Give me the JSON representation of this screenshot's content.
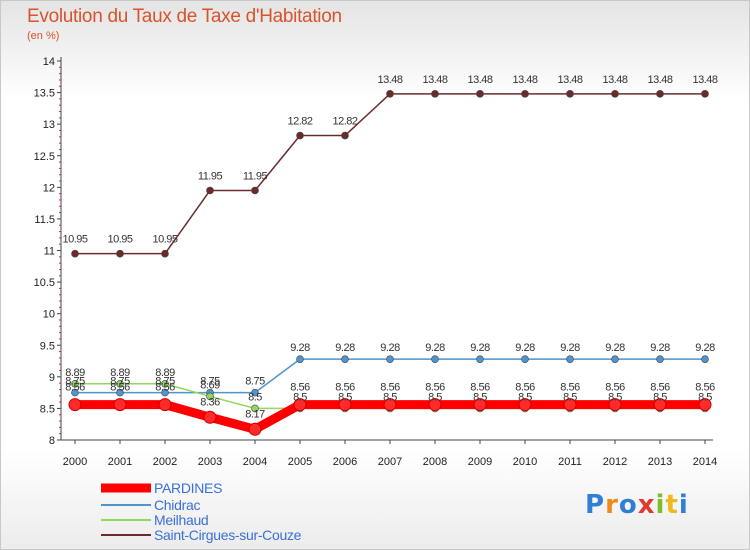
{
  "chart_data": {
    "type": "line",
    "title": "Evolution du Taux de Taxe d'Habitation",
    "subtitle": "(en %)",
    "x": [
      "2000",
      "2001",
      "2002",
      "2003",
      "2004",
      "2005",
      "2006",
      "2007",
      "2008",
      "2009",
      "2010",
      "2011",
      "2012",
      "2013",
      "2014"
    ],
    "ylim": [
      8,
      14
    ],
    "yticks": [
      "8",
      "8.5",
      "9",
      "9.5",
      "10",
      "10.5",
      "11",
      "11.5",
      "12",
      "12.5",
      "13",
      "13.5",
      "14"
    ],
    "grid": false,
    "legend_position": "bottom-left",
    "series": [
      {
        "name": "PARDINES",
        "color": "#ff0000",
        "values": [
          8.56,
          8.56,
          8.56,
          8.36,
          8.17,
          8.56,
          8.56,
          8.56,
          8.56,
          8.56,
          8.56,
          8.56,
          8.56,
          8.56,
          8.56
        ],
        "labels": [
          "8.56",
          "8.56",
          "8.56",
          "8.36",
          "8.17",
          "8.56",
          "8.56",
          "8.56",
          "8.56",
          "8.56",
          "8.56",
          "8.56",
          "8.56",
          "8.56",
          "8.56"
        ]
      },
      {
        "name": "Chidrac",
        "color": "#4f94cd",
        "values": [
          8.75,
          8.75,
          8.75,
          8.75,
          8.75,
          9.28,
          9.28,
          9.28,
          9.28,
          9.28,
          9.28,
          9.28,
          9.28,
          9.28,
          9.28
        ],
        "labels": [
          "8.75",
          "8.75",
          "8.75",
          "8.75",
          "8.75",
          "9.28",
          "9.28",
          "9.28",
          "9.28",
          "9.28",
          "9.28",
          "9.28",
          "9.28",
          "9.28",
          "9.28"
        ]
      },
      {
        "name": "Meilhaud",
        "color": "#90d860",
        "values": [
          8.89,
          8.89,
          8.89,
          8.69,
          8.5,
          8.5,
          8.5,
          8.5,
          8.5,
          8.5,
          8.5,
          8.5,
          8.5,
          8.5,
          8.5
        ],
        "labels": [
          "8.89",
          "8.89",
          "8.89",
          "8.69",
          "8.5",
          "8.5",
          "8.5",
          "8.5",
          "8.5",
          "8.5",
          "8.5",
          "8.5",
          "8.5",
          "8.5",
          "8.5"
        ]
      },
      {
        "name": "Saint-Cirgues-sur-Couze",
        "color": "#6b2b2b",
        "values": [
          10.95,
          10.95,
          10.95,
          11.95,
          11.95,
          12.82,
          12.82,
          13.48,
          13.48,
          13.48,
          13.48,
          13.48,
          13.48,
          13.48,
          13.48
        ],
        "labels": [
          "10.95",
          "10.95",
          "10.95",
          "11.95",
          "11.95",
          "12.82",
          "12.82",
          "13.48",
          "13.48",
          "13.48",
          "13.48",
          "13.48",
          "13.48",
          "13.48",
          "13.48"
        ]
      }
    ]
  },
  "logo": {
    "letters": [
      "P",
      "r",
      "o",
      "x",
      "i",
      "t",
      "i"
    ],
    "colors": [
      "#2f7fd6",
      "#f08a1c",
      "#2f7fd6",
      "#e03a2e",
      "#7cbf2a",
      "#f0b81c",
      "#2f7fd6"
    ]
  }
}
